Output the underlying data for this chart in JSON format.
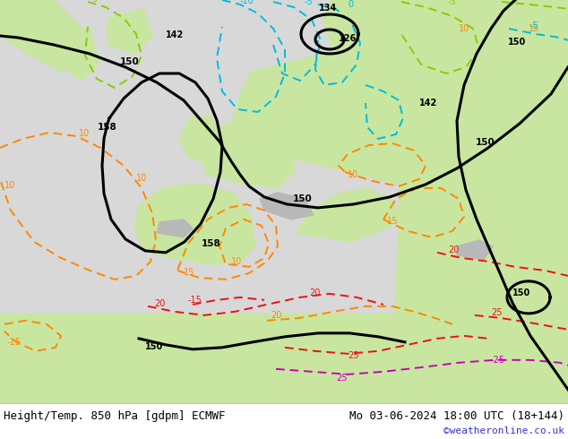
{
  "title_left": "Height/Temp. 850 hPa [gdpm] ECMWF",
  "title_right": "Mo 03-06-2024 18:00 UTC (18+144)",
  "credit": "©weatheronline.co.uk",
  "bg_sea": "#d8d8d8",
  "bg_land_green": "#c8e6a0",
  "bg_land_green2": "#b8dc8a",
  "contour_black": "#000000",
  "contour_orange": "#ff8800",
  "contour_cyan": "#00bbdd",
  "contour_red": "#ee1111",
  "contour_magenta": "#cc00bb",
  "contour_green": "#88cc00",
  "title_fontsize": 9,
  "credit_fontsize": 8,
  "fig_width": 6.34,
  "fig_height": 4.9,
  "dpi": 100
}
